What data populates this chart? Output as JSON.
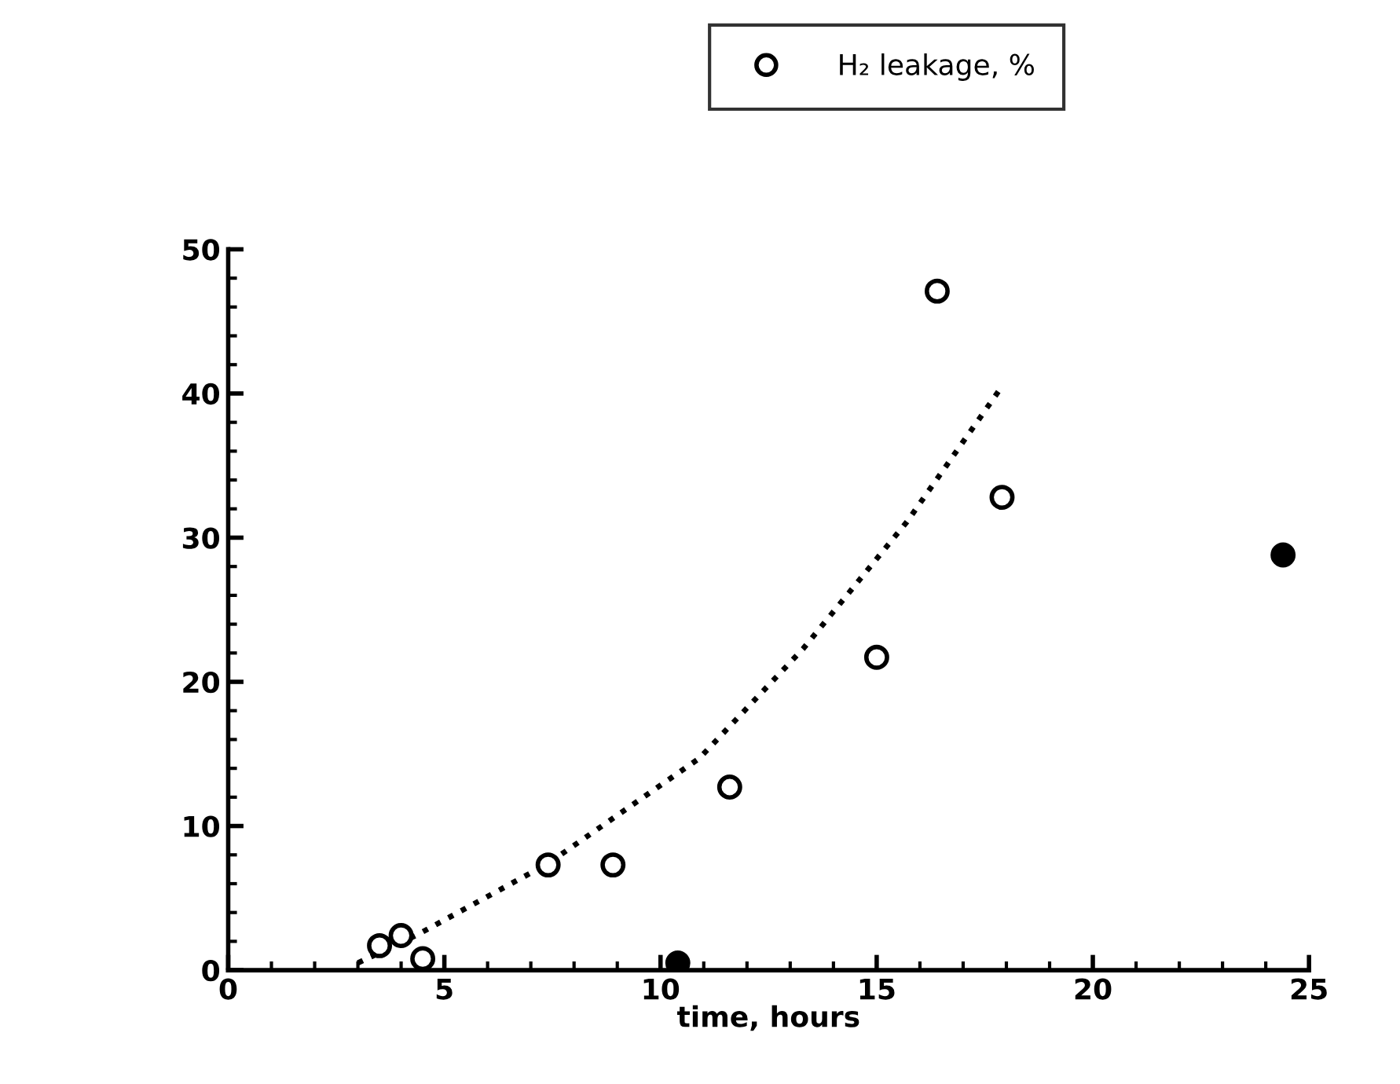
{
  "chart_data": {
    "type": "scatter",
    "xlabel": "time, hours",
    "legend": "top right",
    "xlim": [
      0,
      25
    ],
    "ylim": [
      0,
      50
    ],
    "xticks": [
      0,
      {
        "value": 1,
        "label": null
      },
      {
        "value": 2,
        "label": null
      },
      {
        "value": 3,
        "label": null
      },
      {
        "value": 4,
        "label": null
      },
      5,
      {
        "value": 6,
        "label": null
      },
      {
        "value": 7,
        "label": null
      },
      {
        "value": 8,
        "label": null
      },
      {
        "value": 9,
        "label": null
      },
      10,
      {
        "value": 11,
        "label": null
      },
      {
        "value": 12,
        "label": null
      },
      {
        "value": 13,
        "label": null
      },
      {
        "value": 14,
        "label": null
      },
      15,
      {
        "value": 16,
        "label": null
      },
      {
        "value": 17,
        "label": null
      },
      {
        "value": 18,
        "label": null
      },
      {
        "value": 19,
        "label": null
      },
      20,
      {
        "value": 21,
        "label": null
      },
      {
        "value": 22,
        "label": null
      },
      {
        "value": 23,
        "label": null
      },
      {
        "value": 24,
        "label": null
      },
      25
    ],
    "yticks": [
      0,
      {
        "value": 2,
        "label": null
      },
      {
        "value": 4,
        "label": null
      },
      {
        "value": 6,
        "label": null
      },
      {
        "value": 8,
        "label": null
      },
      10,
      {
        "value": 12,
        "label": null
      },
      {
        "value": 14,
        "label": null
      },
      {
        "value": 16,
        "label": null
      },
      {
        "value": 18,
        "label": null
      },
      20,
      {
        "value": 22,
        "label": null
      },
      {
        "value": 24,
        "label": null
      },
      {
        "value": 26,
        "label": null
      },
      {
        "value": 28,
        "label": null
      },
      30,
      {
        "value": 32,
        "label": null
      },
      {
        "value": 34,
        "label": null
      },
      {
        "value": 36,
        "label": null
      },
      {
        "value": 38,
        "label": null
      },
      40,
      {
        "value": 42,
        "label": null
      },
      {
        "value": 44,
        "label": null
      },
      {
        "value": 46,
        "label": null
      },
      {
        "value": 48,
        "label": null
      },
      50
    ],
    "grid": false,
    "series": [
      {
        "name": "H₂ leakage, %",
        "marker": "circle",
        "color": "#000000",
        "x": [
          3.5,
          4.0,
          4.5,
          7.4,
          8.9,
          11.6,
          15.0,
          16.4,
          17.9
        ],
        "values": [
          1.7,
          2.4,
          0.8,
          7.3,
          7.3,
          12.7,
          21.7,
          47.1,
          32.8
        ]
      },
      {
        "marker": "circle",
        "color": "#000000",
        "x": [
          10.4,
          24.4
        ],
        "values": [
          0.5,
          28.8
        ]
      },
      {
        "type": "line",
        "marker": "none",
        "line_style": "dotted",
        "color": "#000000",
        "x": [
          3.0,
          4.4,
          7.4,
          10.9,
          13.3,
          15.7,
          17.9
        ],
        "values": [
          0.5,
          2.5,
          7.4,
          14.7,
          22.3,
          31.1,
          40.5
        ]
      }
    ]
  }
}
